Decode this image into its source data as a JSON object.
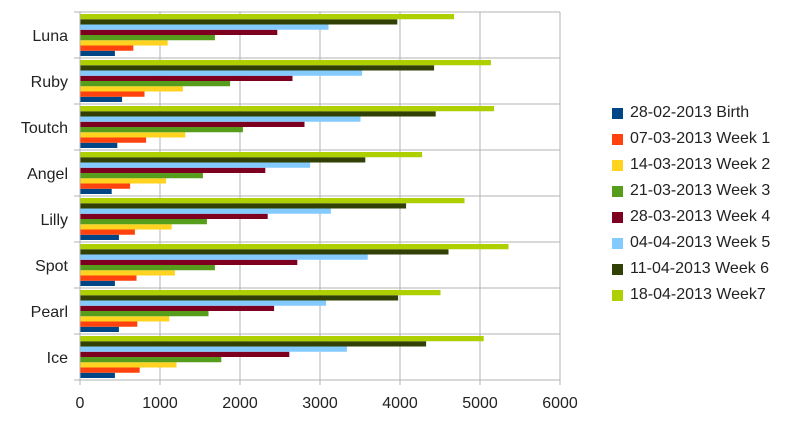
{
  "chart_data": {
    "type": "bar",
    "orientation": "horizontal",
    "categories": [
      "Luna",
      "Ruby",
      "Toutch",
      "Angel",
      "Lilly",
      "Spot",
      "Pearl",
      "Ice"
    ],
    "xlim": [
      0,
      6000
    ],
    "x_ticks": [
      "0",
      "1000",
      "2000",
      "3000",
      "4000",
      "5000",
      "6000"
    ],
    "grid": "vertical major gridlines",
    "legend": "right",
    "series": [
      {
        "name": "28-02-2013 Birth",
        "color": "#004586",
        "values": [
          430,
          520,
          460,
          390,
          480,
          430,
          480,
          430
        ]
      },
      {
        "name": "07-03-2013 Week 1",
        "color": "#ff420e",
        "values": [
          660,
          800,
          820,
          620,
          680,
          700,
          710,
          740
        ]
      },
      {
        "name": "14-03-2013 Week 2",
        "color": "#ffd320",
        "values": [
          1090,
          1280,
          1310,
          1070,
          1140,
          1180,
          1110,
          1200
        ]
      },
      {
        "name": "21-03-2013 Week 3",
        "color": "#579d1c",
        "values": [
          1680,
          1870,
          2030,
          1530,
          1580,
          1680,
          1600,
          1760
        ]
      },
      {
        "name": "28-03-2013 Week 4",
        "color": "#7e0021",
        "values": [
          2460,
          2650,
          2800,
          2310,
          2340,
          2710,
          2420,
          2610
        ]
      },
      {
        "name": "04-04-2013 Week 5",
        "color": "#83caff",
        "values": [
          3100,
          3520,
          3500,
          2870,
          3130,
          3590,
          3070,
          3330
        ]
      },
      {
        "name": "11-04-2013 Week 6",
        "color": "#314004",
        "values": [
          3960,
          4420,
          4440,
          3560,
          4070,
          4600,
          3970,
          4320
        ]
      },
      {
        "name": "18-04-2013 Week7",
        "color": "#aecf00",
        "values": [
          4670,
          5130,
          5170,
          4270,
          4800,
          5350,
          4500,
          5040
        ]
      }
    ]
  }
}
